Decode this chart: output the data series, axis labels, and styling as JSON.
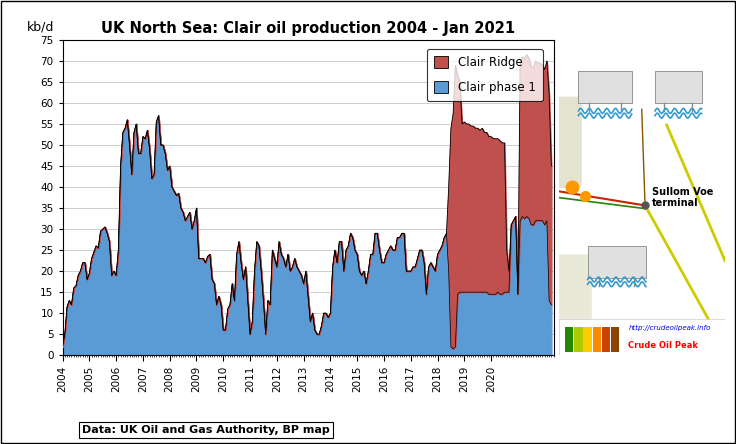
{
  "title": "UK North Sea: Clair oil production 2004 - Jan 2021",
  "ylabel": "kb/d",
  "ylim": [
    0,
    75
  ],
  "yticks": [
    0,
    5,
    10,
    15,
    20,
    25,
    30,
    35,
    40,
    45,
    50,
    55,
    60,
    65,
    70,
    75
  ],
  "source_text": "Data: UK Oil and Gas Authority, BP map",
  "legend_labels": [
    "Clair Ridge",
    "Clair phase 1"
  ],
  "clair_phase1_color": "#5b9bd5",
  "clair_ridge_color": "#c0504d",
  "line_color": "#000000",
  "background_color": "#ffffff",
  "right_panel_color": "#87ceeb",
  "url_text": "http://crudeoilpeak.info",
  "brand_text": "Crude Oil Peak",
  "start_year": 2004,
  "xtick_years": [
    2004,
    2005,
    2006,
    2007,
    2008,
    2009,
    2010,
    2011,
    2012,
    2013,
    2014,
    2015,
    2016,
    2017,
    2018,
    2019,
    2020
  ],
  "clair_phase1_data": [
    2.0,
    5.0,
    11.5,
    13.0,
    12.0,
    16.0,
    16.5,
    19.0,
    20.0,
    22.0,
    22.0,
    18.0,
    19.5,
    23.0,
    24.5,
    26.0,
    25.5,
    29.5,
    30.0,
    30.5,
    29.0,
    27.0,
    19.0,
    20.0,
    19.0,
    25.0,
    45.0,
    53.0,
    54.0,
    56.0,
    50.0,
    43.0,
    53.0,
    55.0,
    48.0,
    48.0,
    52.0,
    51.5,
    53.5,
    49.0,
    42.0,
    43.0,
    55.5,
    57.0,
    50.0,
    50.0,
    48.0,
    44.0,
    45.0,
    40.0,
    39.0,
    38.0,
    38.5,
    35.0,
    34.0,
    32.0,
    33.0,
    34.0,
    30.0,
    32.0,
    35.0,
    23.0,
    23.0,
    23.0,
    22.0,
    23.5,
    24.0,
    18.0,
    17.0,
    12.0,
    14.0,
    12.0,
    6.0,
    6.0,
    11.0,
    12.0,
    17.0,
    13.0,
    24.0,
    27.0,
    22.0,
    18.0,
    21.0,
    13.0,
    5.0,
    8.0,
    20.0,
    27.0,
    26.0,
    20.0,
    13.0,
    5.0,
    13.0,
    12.0,
    25.0,
    23.0,
    21.0,
    27.0,
    24.0,
    23.0,
    21.0,
    24.0,
    20.0,
    21.0,
    23.0,
    21.0,
    20.0,
    19.0,
    17.0,
    20.0,
    14.0,
    8.0,
    10.0,
    6.0,
    5.0,
    5.0,
    7.0,
    10.0,
    10.0,
    9.0,
    10.0,
    21.0,
    25.0,
    22.0,
    27.0,
    27.0,
    20.0,
    25.0,
    26.0,
    29.0,
    28.0,
    25.0,
    24.0,
    20.0,
    19.0,
    20.0,
    17.0,
    20.0,
    24.0,
    24.0,
    29.0,
    29.0,
    25.0,
    22.0,
    22.0,
    24.0,
    25.0,
    26.0,
    25.0,
    25.0,
    28.0,
    28.0,
    29.0,
    29.0,
    20.0,
    20.0,
    20.0,
    21.0,
    21.0,
    23.0,
    25.0,
    25.0,
    22.0,
    14.5,
    21.0,
    22.0,
    21.0,
    20.0,
    24.0,
    25.0,
    26.0,
    28.0,
    29.0,
    20.0,
    2.0,
    1.5,
    2.0,
    14.5,
    15.0,
    15.0,
    15.0,
    15.0,
    15.0,
    15.0,
    15.0,
    15.0,
    15.0,
    15.0,
    15.0,
    15.0,
    15.0,
    14.5,
    14.5,
    14.5,
    14.5,
    15.0,
    14.5,
    14.5,
    15.0,
    15.0,
    15.0,
    31.0,
    32.0,
    33.0,
    14.5,
    32.0,
    33.0,
    32.5,
    33.0,
    32.5,
    31.0,
    31.0,
    32.0,
    32.0,
    32.0,
    32.0,
    31.0,
    32.0,
    13.0,
    12.0
  ],
  "clair_ridge_data": [
    0.0,
    0.0,
    0.0,
    0.0,
    0.0,
    0.0,
    0.0,
    0.0,
    0.0,
    0.0,
    0.0,
    0.0,
    0.0,
    0.0,
    0.0,
    0.0,
    0.0,
    0.0,
    0.0,
    0.0,
    0.0,
    0.0,
    0.0,
    0.0,
    0.0,
    0.0,
    0.0,
    0.0,
    0.0,
    0.0,
    0.0,
    0.0,
    0.0,
    0.0,
    0.0,
    0.0,
    0.0,
    0.0,
    0.0,
    0.0,
    0.0,
    0.0,
    0.0,
    0.0,
    0.0,
    0.0,
    0.0,
    0.0,
    0.0,
    0.0,
    0.0,
    0.0,
    0.0,
    0.0,
    0.0,
    0.0,
    0.0,
    0.0,
    0.0,
    0.0,
    0.0,
    0.0,
    0.0,
    0.0,
    0.0,
    0.0,
    0.0,
    0.0,
    0.0,
    0.0,
    0.0,
    0.0,
    0.0,
    0.0,
    0.0,
    0.0,
    0.0,
    0.0,
    0.0,
    0.0,
    0.0,
    0.0,
    0.0,
    0.0,
    0.0,
    0.0,
    0.0,
    0.0,
    0.0,
    0.0,
    0.0,
    0.0,
    0.0,
    0.0,
    0.0,
    0.0,
    0.0,
    0.0,
    0.0,
    0.0,
    0.0,
    0.0,
    0.0,
    0.0,
    0.0,
    0.0,
    0.0,
    0.0,
    0.0,
    0.0,
    0.0,
    0.0,
    0.0,
    0.0,
    0.0,
    0.0,
    0.0,
    0.0,
    0.0,
    0.0,
    0.0,
    0.0,
    0.0,
    0.0,
    0.0,
    0.0,
    0.0,
    0.0,
    0.0,
    0.0,
    0.0,
    0.0,
    0.0,
    0.0,
    0.0,
    0.0,
    0.0,
    0.0,
    0.0,
    0.0,
    0.0,
    0.0,
    0.0,
    0.0,
    0.0,
    0.0,
    0.0,
    0.0,
    0.0,
    0.0,
    0.0,
    0.0,
    0.0,
    0.0,
    0.0,
    0.0,
    0.0,
    0.0,
    0.0,
    0.0,
    0.0,
    0.0,
    0.0,
    0.0,
    0.0,
    0.0,
    0.0,
    0.0,
    0.0,
    0.0,
    0.0,
    0.0,
    0.0,
    20.0,
    52.0,
    56.0,
    67.0,
    52.0,
    50.0,
    40.0,
    40.5,
    40.0,
    40.0,
    39.5,
    39.5,
    39.0,
    39.0,
    38.5,
    39.0,
    38.0,
    38.0,
    37.5,
    37.5,
    37.0,
    37.0,
    36.5,
    36.5,
    36.0,
    35.5,
    10.0,
    5.0,
    0.0,
    0.0,
    0.0,
    0.0,
    37.5,
    38.0,
    38.0,
    38.5,
    38.0,
    37.5,
    37.5,
    38.0,
    37.5,
    37.5,
    37.0,
    37.0,
    38.0,
    49.0,
    33.0
  ]
}
